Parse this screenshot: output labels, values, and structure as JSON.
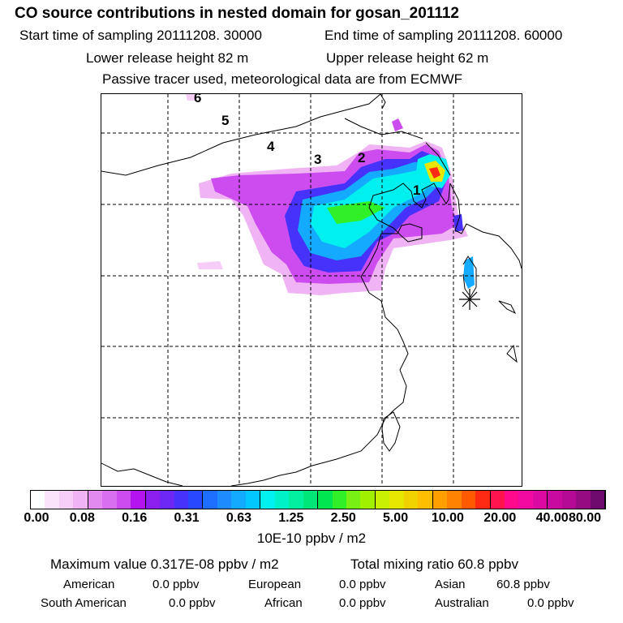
{
  "header": {
    "title": "CO  source contributions in nested domain for gosan_201112",
    "start_time": "Start time of sampling 20111208. 30000",
    "end_time": "End time of sampling 20111208. 60000",
    "lower_release": "Lower release height   82 m",
    "upper_release": "Upper release height   62 m",
    "tracer_note": "Passive tracer used, meteorological data are from ECMWF"
  },
  "map": {
    "trajectory_labels": [
      "1",
      "2",
      "3",
      "4",
      "5",
      "6"
    ],
    "receptor_marker": "asterisk-marker"
  },
  "colorbar": {
    "ticks": [
      "0.00",
      "0.08",
      "0.16",
      "0.31",
      "0.63",
      "1.25",
      "2.50",
      "5.00",
      "10.00",
      "20.00",
      "40.00",
      "80.00"
    ],
    "unit": "10E-10 ppbv / m2",
    "colors": [
      "#ffffff",
      "#fbe4fb",
      "#f6cdf6",
      "#f0b3f3",
      "#e38af0",
      "#d86ef0",
      "#cc4cf0",
      "#b414f0",
      "#8c1ef0",
      "#6e28f5",
      "#4632fa",
      "#2848ff",
      "#1e6eff",
      "#1e8cff",
      "#14aaff",
      "#00c8ff",
      "#00f0f0",
      "#00f0c8",
      "#00f0a0",
      "#00e678",
      "#00e650",
      "#32f028",
      "#78f014",
      "#a0f000",
      "#c8f000",
      "#e6e600",
      "#f0d200",
      "#ffbe00",
      "#ffa000",
      "#ff8200",
      "#ff5a00",
      "#ff2a14",
      "#ff1450",
      "#ff0a8c",
      "#f00aa0",
      "#dc0aa0",
      "#c80aa0",
      "#b40a96",
      "#960a82",
      "#6e0a6e"
    ]
  },
  "summary": {
    "max_value": "Maximum value  0.317E-08 ppbv / m2",
    "total_mixing": "Total mixing ratio       60.8 ppbv",
    "american_label": "American",
    "american_value": "0.0 ppbv",
    "european_label": "European",
    "european_value": "0.0 ppbv",
    "asian_label": "Asian",
    "asian_value": "60.8 ppbv",
    "south_american_label": "South American",
    "south_american_value": "0.0 ppbv",
    "african_label": "African",
    "african_value": "0.0 ppbv",
    "australian_label": "Australian",
    "australian_value": "0.0 ppbv"
  }
}
